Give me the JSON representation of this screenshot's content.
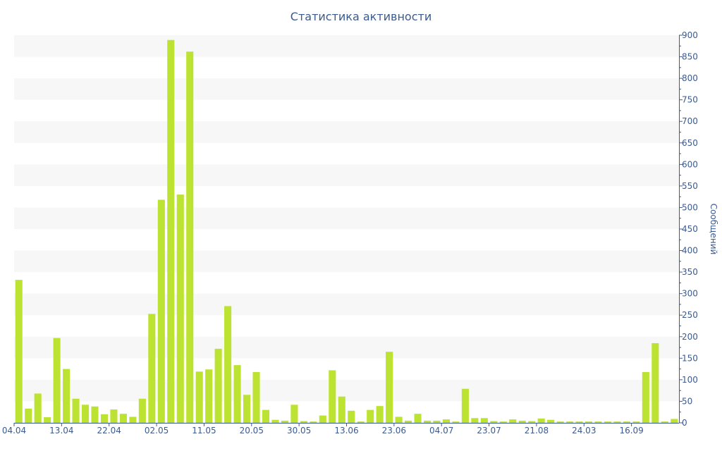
{
  "chart_data": {
    "type": "bar",
    "title": "Статистика активности",
    "ylabel": "Сообщений",
    "xlabel": "",
    "ylim": [
      0,
      900
    ],
    "y_ticks": [
      0,
      50,
      100,
      150,
      200,
      250,
      300,
      350,
      400,
      450,
      500,
      550,
      600,
      650,
      700,
      750,
      800,
      850,
      900
    ],
    "y_axis_side": "right",
    "grid": "alternating horizontal bands",
    "colors": {
      "bar": "#bde332",
      "band": "#f7f7f7",
      "text": "#3b5a8f",
      "axis": "#3b5a8f"
    },
    "x_tick_labels": [
      {
        "label": "04.04",
        "index": 0
      },
      {
        "label": "13.04",
        "index": 5
      },
      {
        "label": "22.04",
        "index": 10
      },
      {
        "label": "02.05",
        "index": 15
      },
      {
        "label": "11.05",
        "index": 20
      },
      {
        "label": "20.05",
        "index": 25
      },
      {
        "label": "30.05",
        "index": 30
      },
      {
        "label": "13.06",
        "index": 35
      },
      {
        "label": "23.06",
        "index": 40
      },
      {
        "label": "04.07",
        "index": 45
      },
      {
        "label": "23.07",
        "index": 50
      },
      {
        "label": "21.08",
        "index": 55
      },
      {
        "label": "24.03",
        "index": 60
      },
      {
        "label": "16.09",
        "index": 65
      }
    ],
    "values": [
      332,
      33,
      68,
      13,
      197,
      125,
      56,
      42,
      38,
      20,
      31,
      21,
      14,
      56,
      253,
      518,
      889,
      530,
      862,
      119,
      124,
      172,
      271,
      134,
      65,
      118,
      30,
      7,
      5,
      42,
      4,
      3,
      17,
      122,
      61,
      28,
      3,
      30,
      39,
      165,
      14,
      5,
      21,
      5,
      5,
      8,
      3,
      79,
      11,
      11,
      4,
      3,
      8,
      5,
      4,
      10,
      7,
      3,
      3,
      3,
      3,
      3,
      3,
      3,
      3,
      3,
      118,
      185,
      3,
      9
    ]
  }
}
